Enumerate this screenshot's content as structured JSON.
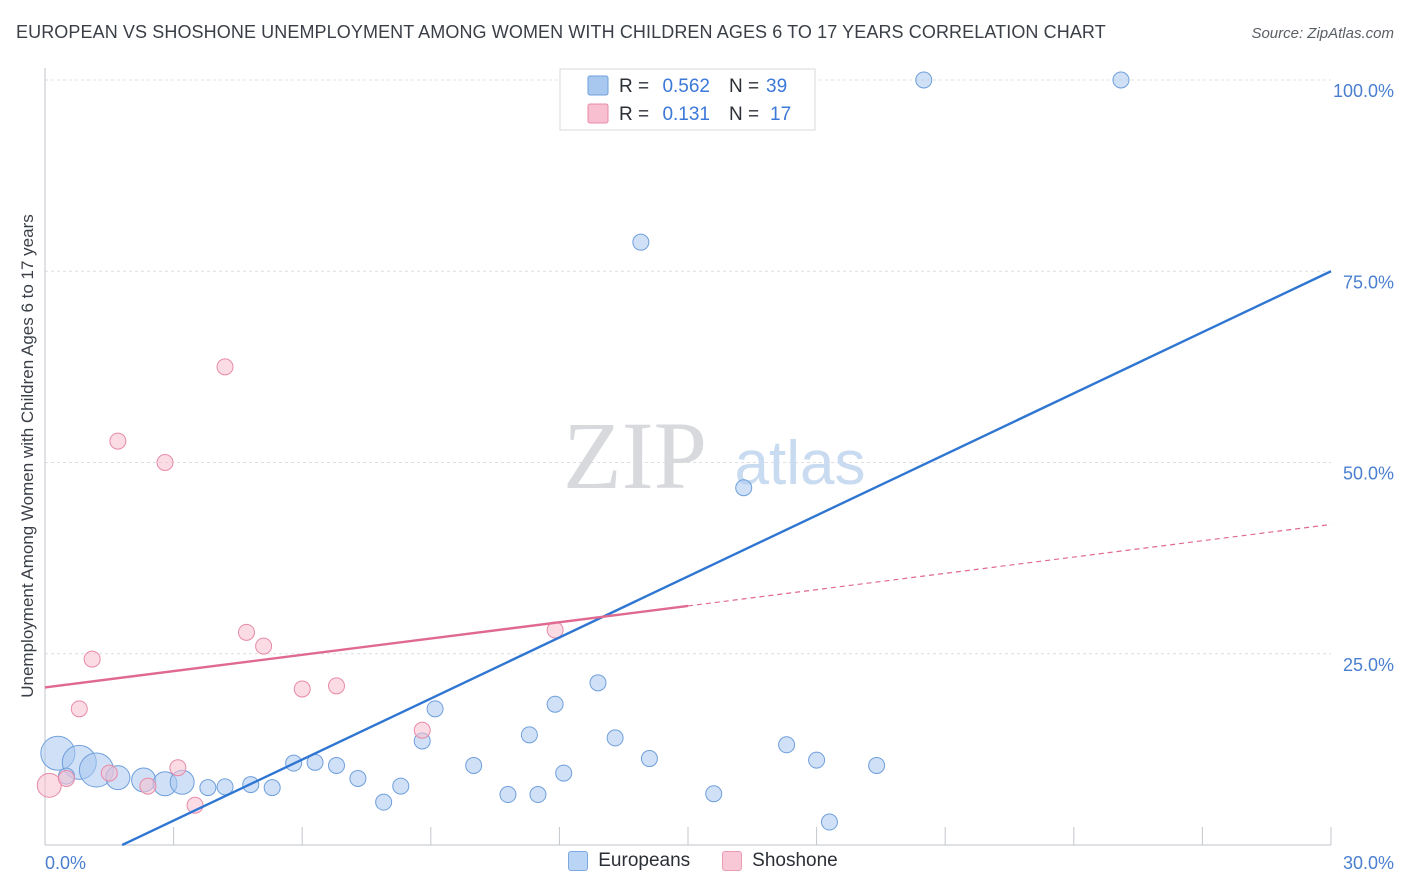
{
  "header": {
    "title": "EUROPEAN VS SHOSHONE UNEMPLOYMENT AMONG WOMEN WITH CHILDREN AGES 6 TO 17 YEARS CORRELATION CHART",
    "source": "Source: ZipAtlas.com"
  },
  "watermark": {
    "zip": "ZIP",
    "atlas": "atlas"
  },
  "stats": {
    "r_label": "R =",
    "n_label": "N =",
    "rows": [
      {
        "series": "Europeans",
        "r": "0.562",
        "n": "39",
        "color": "#a9c8f0",
        "stroke": "#6f9fdc"
      },
      {
        "series": "Shoshone",
        "r": "0.131",
        "n": "17",
        "color": "#f7bfd0",
        "stroke": "#e88aa8"
      }
    ]
  },
  "chart_data": {
    "type": "scatter",
    "title": "EUROPEAN VS SHOSHONE UNEMPLOYMENT AMONG WOMEN WITH CHILDREN AGES 6 TO 17 YEARS CORRELATION CHART",
    "xlabel": "",
    "ylabel": "Unemployment Among Women with Children Ages 6 to 17 years",
    "xlim": [
      0,
      30
    ],
    "ylim": [
      0,
      100
    ],
    "x_tick_labels": [
      "0.0%",
      "30.0%"
    ],
    "y_ticks": [
      {
        "value": 25,
        "label": "25.0%"
      },
      {
        "value": 50,
        "label": "50.0%"
      },
      {
        "value": 75,
        "label": "75.0%"
      },
      {
        "value": 100,
        "label": "100.0%"
      }
    ],
    "grid": "horizontal dashed",
    "legend_position": "bottom",
    "series": [
      {
        "name": "Europeans",
        "color": "#a9c8f0",
        "stroke": "#6f9fdc",
        "trend_color": "#2f76d2",
        "trend": {
          "x0": 1.8,
          "y0": 0,
          "x1": 30,
          "y1": 75.0,
          "dashed_from": null
        },
        "points": [
          {
            "x": 0.3,
            "y": 12.0,
            "size": 3
          },
          {
            "x": 0.8,
            "y": 10.8,
            "size": 3
          },
          {
            "x": 1.2,
            "y": 9.8,
            "size": 3
          },
          {
            "x": 1.7,
            "y": 8.8,
            "size": 2
          },
          {
            "x": 2.3,
            "y": 8.5,
            "size": 2
          },
          {
            "x": 2.8,
            "y": 8.0,
            "size": 2
          },
          {
            "x": 3.2,
            "y": 8.2,
            "size": 2
          },
          {
            "x": 3.8,
            "y": 7.5,
            "size": 1
          },
          {
            "x": 4.2,
            "y": 7.6,
            "size": 1
          },
          {
            "x": 4.8,
            "y": 7.9,
            "size": 1
          },
          {
            "x": 5.3,
            "y": 7.5,
            "size": 1
          },
          {
            "x": 5.8,
            "y": 10.7,
            "size": 1
          },
          {
            "x": 6.3,
            "y": 10.8,
            "size": 1
          },
          {
            "x": 6.8,
            "y": 10.4,
            "size": 1
          },
          {
            "x": 7.3,
            "y": 8.7,
            "size": 1
          },
          {
            "x": 7.9,
            "y": 5.6,
            "size": 1
          },
          {
            "x": 8.3,
            "y": 7.7,
            "size": 1
          },
          {
            "x": 8.8,
            "y": 13.6,
            "size": 1
          },
          {
            "x": 9.1,
            "y": 17.8,
            "size": 1
          },
          {
            "x": 10.0,
            "y": 10.4,
            "size": 1
          },
          {
            "x": 10.8,
            "y": 6.6,
            "size": 1
          },
          {
            "x": 11.5,
            "y": 6.6,
            "size": 1
          },
          {
            "x": 11.3,
            "y": 14.4,
            "size": 1
          },
          {
            "x": 11.9,
            "y": 18.4,
            "size": 1
          },
          {
            "x": 12.1,
            "y": 9.4,
            "size": 1
          },
          {
            "x": 12.9,
            "y": 21.2,
            "size": 1
          },
          {
            "x": 13.3,
            "y": 14.0,
            "size": 1
          },
          {
            "x": 14.1,
            "y": 11.3,
            "size": 1
          },
          {
            "x": 13.9,
            "y": 78.8,
            "size": 1
          },
          {
            "x": 15.6,
            "y": 6.7,
            "size": 1
          },
          {
            "x": 16.3,
            "y": 46.7,
            "size": 1
          },
          {
            "x": 16.8,
            "y": 100.0,
            "size": 1
          },
          {
            "x": 17.3,
            "y": 13.1,
            "size": 1
          },
          {
            "x": 18.0,
            "y": 11.1,
            "size": 1
          },
          {
            "x": 18.3,
            "y": 3.0,
            "size": 1
          },
          {
            "x": 19.4,
            "y": 10.4,
            "size": 1
          },
          {
            "x": 20.5,
            "y": 100.0,
            "size": 1
          },
          {
            "x": 25.1,
            "y": 100.0,
            "size": 1
          },
          {
            "x": 0.5,
            "y": 9.0,
            "size": 1
          }
        ]
      },
      {
        "name": "Shoshone",
        "color": "#f7bfd0",
        "stroke": "#e88aa8",
        "trend_color": "#e0698f",
        "trend": {
          "x0": 0,
          "y0": 20.6,
          "x1": 30,
          "y1": 41.9,
          "dashed_from": 15.0
        },
        "points": [
          {
            "x": 0.1,
            "y": 7.8,
            "size": 2
          },
          {
            "x": 0.5,
            "y": 8.7,
            "size": 1
          },
          {
            "x": 0.8,
            "y": 17.8,
            "size": 1
          },
          {
            "x": 1.1,
            "y": 24.3,
            "size": 1
          },
          {
            "x": 1.5,
            "y": 9.4,
            "size": 1
          },
          {
            "x": 1.7,
            "y": 52.8,
            "size": 1
          },
          {
            "x": 2.4,
            "y": 7.7,
            "size": 1
          },
          {
            "x": 2.8,
            "y": 50.0,
            "size": 1
          },
          {
            "x": 3.1,
            "y": 10.1,
            "size": 1
          },
          {
            "x": 3.5,
            "y": 5.2,
            "size": 1
          },
          {
            "x": 4.2,
            "y": 62.5,
            "size": 1
          },
          {
            "x": 4.7,
            "y": 27.8,
            "size": 1
          },
          {
            "x": 5.1,
            "y": 26.0,
            "size": 1
          },
          {
            "x": 6.0,
            "y": 20.4,
            "size": 1
          },
          {
            "x": 6.8,
            "y": 20.8,
            "size": 1
          },
          {
            "x": 8.8,
            "y": 15.0,
            "size": 1
          },
          {
            "x": 11.9,
            "y": 28.1,
            "size": 1
          }
        ]
      }
    ]
  },
  "legend": {
    "items": [
      {
        "label": "Europeans",
        "color": "#b9d4f5",
        "stroke": "#7ea8e0"
      },
      {
        "label": "Shoshone",
        "color": "#f9c8d6",
        "stroke": "#eb9ab4"
      }
    ]
  }
}
